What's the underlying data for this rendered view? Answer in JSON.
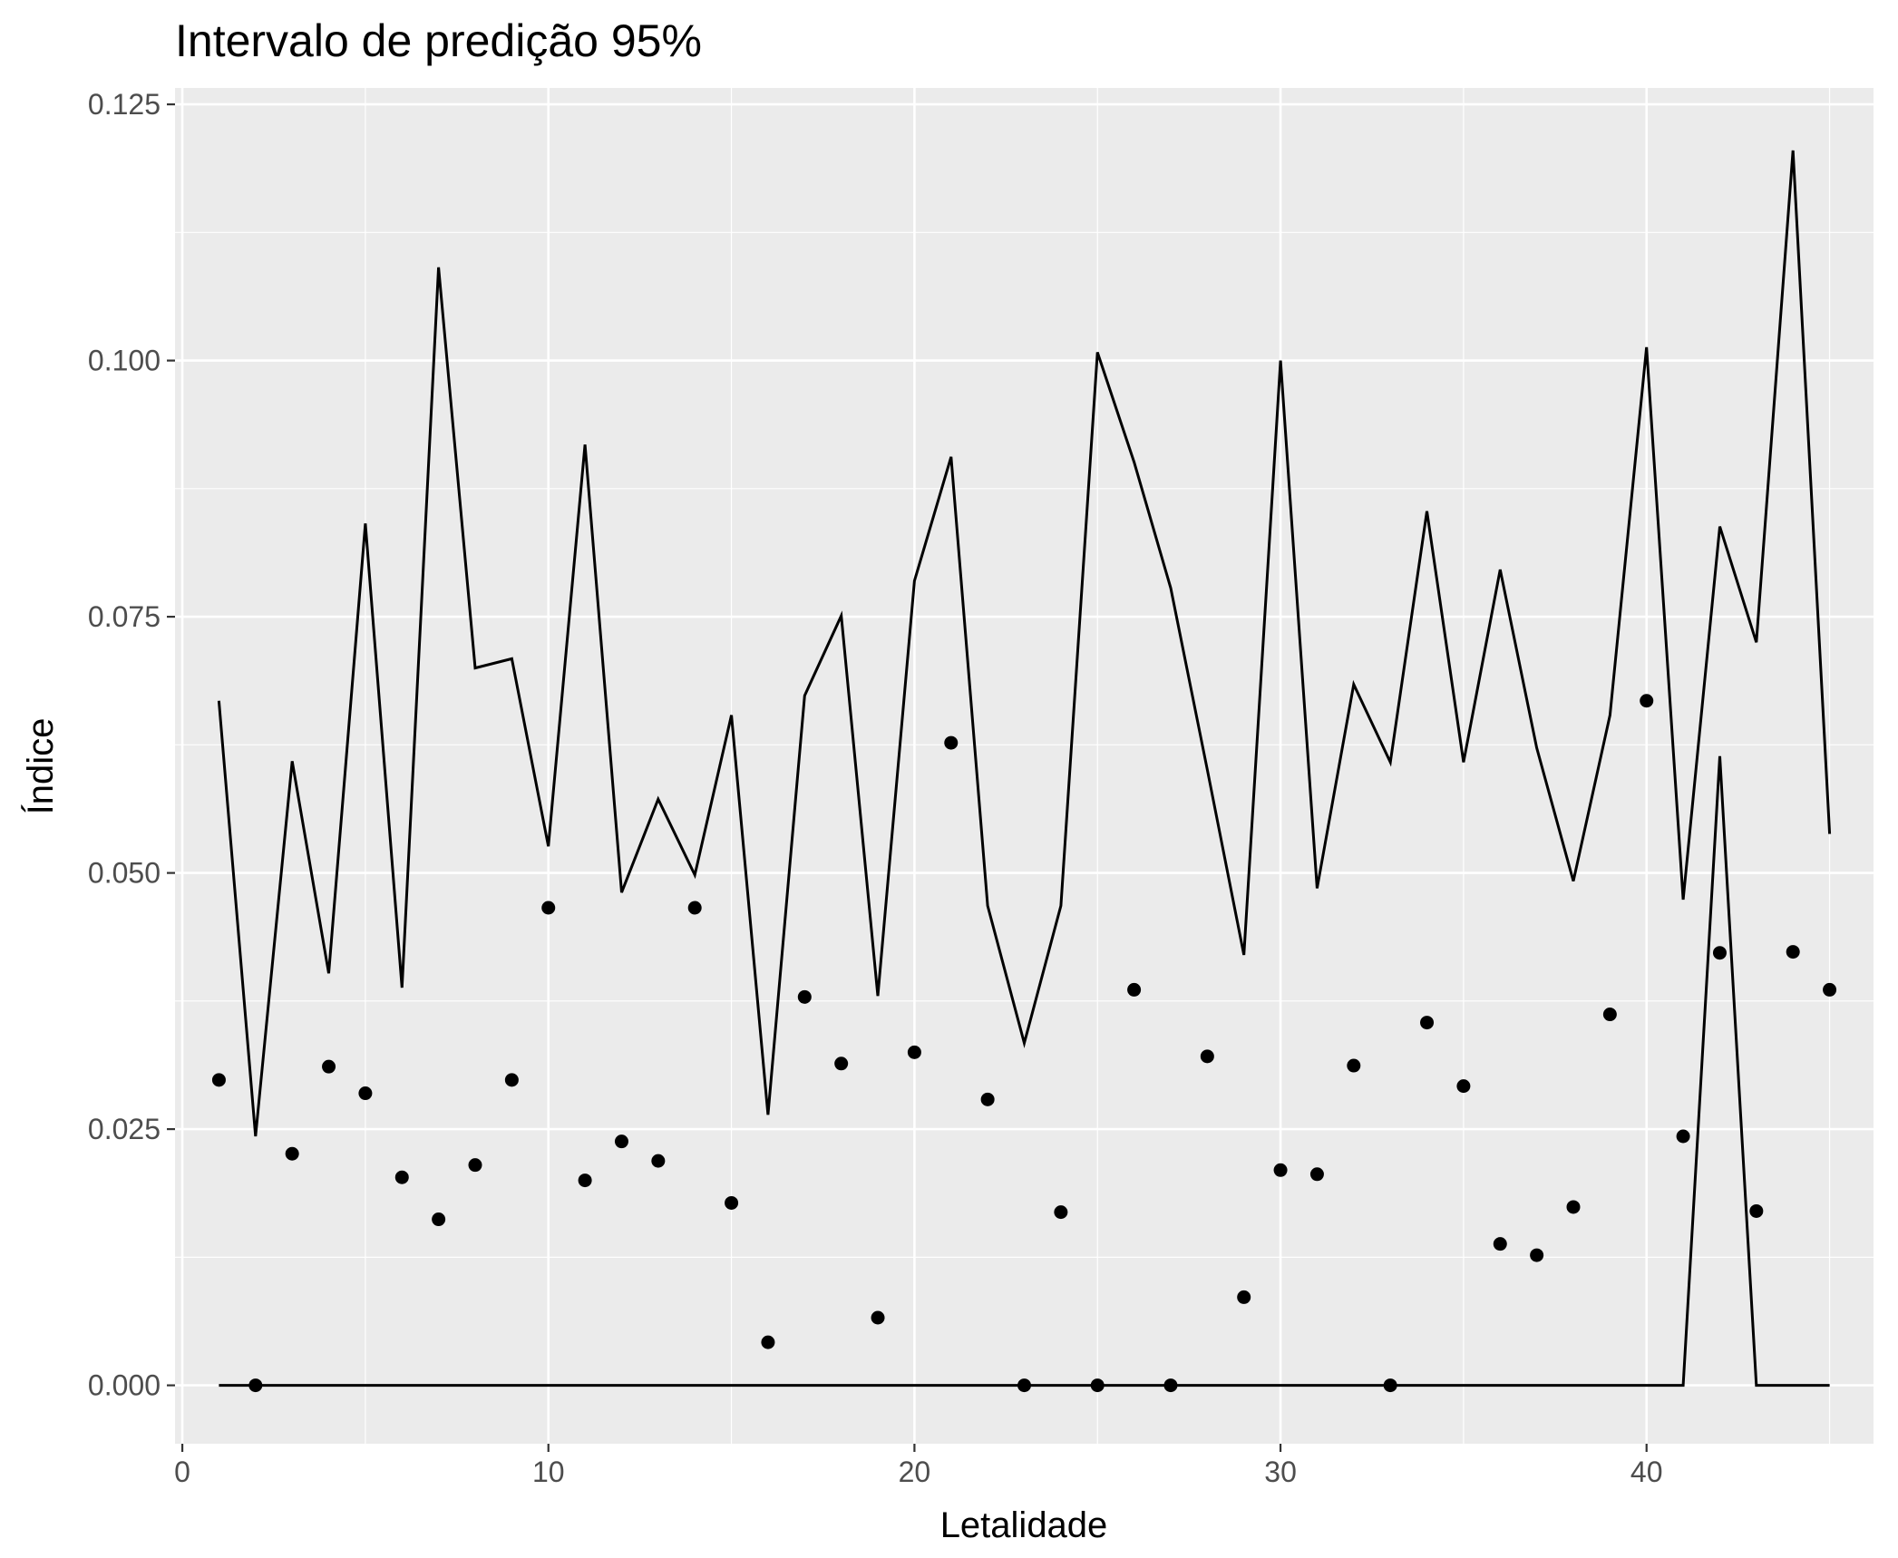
{
  "chart_data": {
    "type": "line",
    "title": "Intervalo de predição 95%",
    "xlabel": "Letalidade",
    "ylabel": "Índice",
    "xlim": [
      -0.2,
      46.2
    ],
    "ylim": [
      -0.0057,
      0.1266
    ],
    "x_ticks": [
      0,
      10,
      20,
      30,
      40
    ],
    "x_tick_labels": [
      "0",
      "10",
      "20",
      "30",
      "40"
    ],
    "y_ticks": [
      0,
      0.025,
      0.05,
      0.075,
      0.1,
      0.125
    ],
    "y_tick_labels": [
      "0.000",
      "0.025",
      "0.050",
      "0.075",
      "0.100",
      "0.125"
    ],
    "grid": true,
    "x": [
      1,
      2,
      3,
      4,
      5,
      6,
      7,
      8,
      9,
      10,
      11,
      12,
      13,
      14,
      15,
      16,
      17,
      18,
      19,
      20,
      21,
      22,
      23,
      24,
      25,
      26,
      27,
      28,
      29,
      30,
      31,
      32,
      33,
      34,
      35,
      36,
      37,
      38,
      39,
      40,
      41,
      42,
      43,
      44,
      45
    ],
    "series": [
      {
        "kind": "scatter",
        "values": [
          0.0298,
          0.0,
          0.0226,
          0.0311,
          0.0285,
          0.0203,
          0.0162,
          0.0215,
          0.0298,
          0.0466,
          0.02,
          0.0238,
          0.0219,
          0.0466,
          0.0178,
          0.0042,
          0.0379,
          0.0314,
          0.0066,
          0.0325,
          0.0627,
          0.0279,
          0.0,
          0.0169,
          0.0,
          0.0386,
          0.0,
          0.0321,
          0.0086,
          0.021,
          0.0206,
          0.0312,
          0.0,
          0.0354,
          0.0292,
          0.0138,
          0.0127,
          0.0174,
          0.0362,
          0.0668,
          0.0243,
          0.0422,
          0.017,
          0.0423,
          0.0386
        ]
      },
      {
        "kind": "line",
        "values": [
          0.0668,
          0.0243,
          0.0609,
          0.0402,
          0.0841,
          0.0388,
          0.1091,
          0.07,
          0.0709,
          0.0526,
          0.0918,
          0.0481,
          0.0572,
          0.0498,
          0.0654,
          0.0264,
          0.0673,
          0.0751,
          0.038,
          0.0785,
          0.0906,
          0.0468,
          0.0334,
          0.0468,
          0.1008,
          0.0901,
          0.0778,
          0.0601,
          0.042,
          0.1,
          0.0485,
          0.0684,
          0.0608,
          0.0853,
          0.0608,
          0.0796,
          0.0622,
          0.0492,
          0.0654,
          0.1013,
          0.0474,
          0.0838,
          0.0725,
          0.1205,
          0.0538
        ]
      },
      {
        "kind": "line",
        "values": [
          0,
          0,
          0,
          0,
          0,
          0,
          0,
          0,
          0,
          0,
          0,
          0,
          0,
          0,
          0,
          0,
          0,
          0,
          0,
          0,
          0,
          0,
          0,
          0,
          0,
          0,
          0,
          0,
          0,
          0,
          0,
          0,
          0,
          0,
          0,
          0,
          0,
          0,
          0,
          0,
          0,
          0.0614,
          0,
          0,
          0
        ]
      }
    ]
  }
}
